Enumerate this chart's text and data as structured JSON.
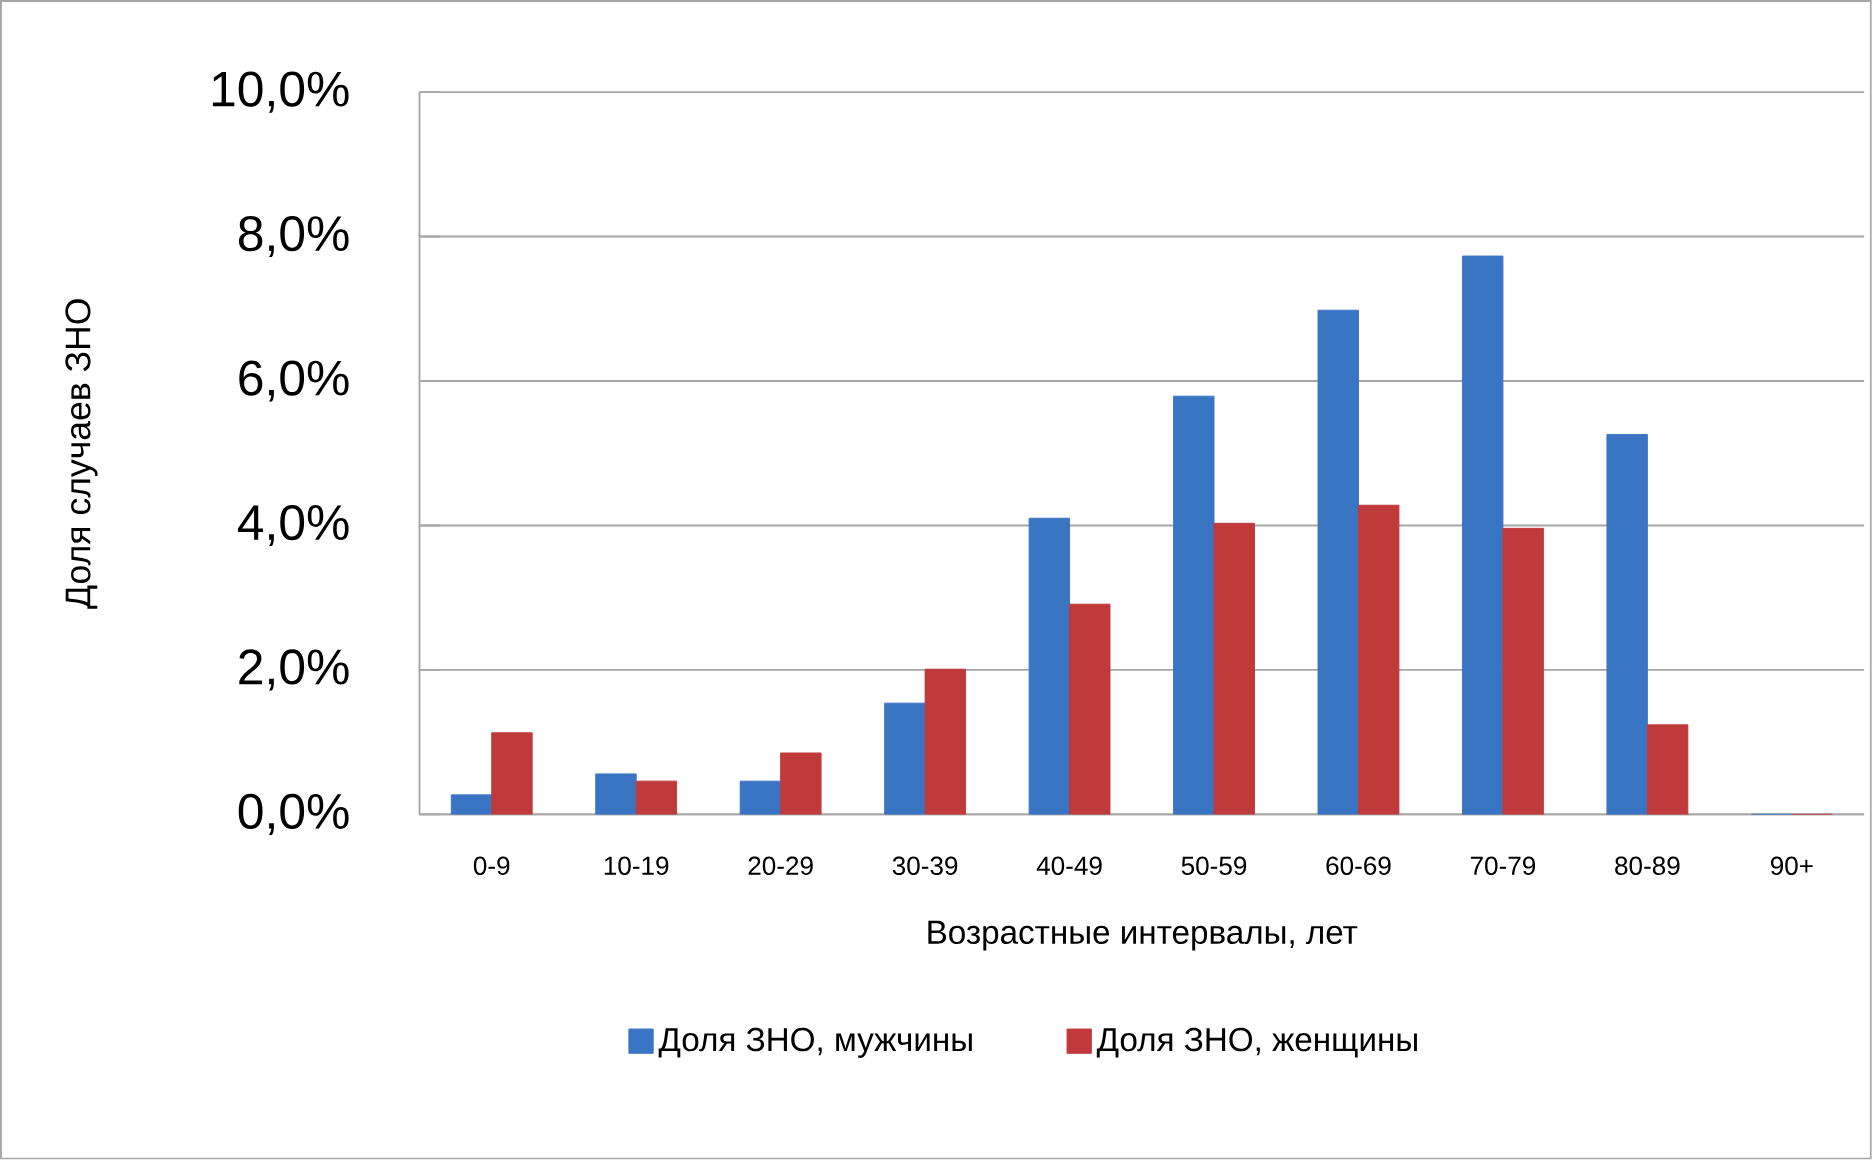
{
  "chart_data": {
    "type": "bar",
    "xlabel": "Возрастные интервалы, лет",
    "ylabel": "Доля случаев  ЗНО",
    "categories": [
      "0-9",
      "10-19",
      "20-29",
      "30-39",
      "40-49",
      "50-59",
      "60-69",
      "70-79",
      "80-89",
      "90+"
    ],
    "series": [
      {
        "name": "Доля ЗНО, мужчины",
        "color": "#3a75c4",
        "values": [
          0.27,
          0.56,
          0.46,
          1.54,
          4.1,
          5.79,
          6.98,
          7.73,
          5.26,
          0
        ]
      },
      {
        "name": "Доля ЗНО, женщины",
        "color": "#c0393b",
        "values": [
          1.13,
          0.46,
          0.85,
          2.01,
          2.91,
          4.03,
          4.28,
          3.96,
          1.24,
          0
        ]
      }
    ],
    "ylim": [
      0,
      10
    ],
    "yticks": [
      {
        "value": 0,
        "label": "0,0%"
      },
      {
        "value": 2,
        "label": "2,0%"
      },
      {
        "value": 4,
        "label": "4,0%"
      },
      {
        "value": 6,
        "label": "6,0%"
      },
      {
        "value": 8,
        "label": "8,0%"
      },
      {
        "value": 10,
        "label": "10,0%"
      }
    ],
    "grid": "y",
    "legend": "bottom"
  }
}
